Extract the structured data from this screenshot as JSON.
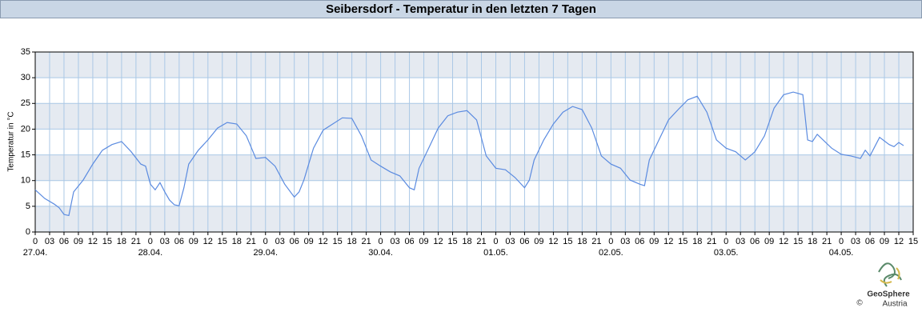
{
  "chart_data": {
    "type": "line",
    "title": "Seibersdorf - Temperatur in den letzten 7 Tagen",
    "ylabel": "Temperatur in °C",
    "ylim": [
      0,
      35
    ],
    "yticks": [
      0,
      5,
      10,
      15,
      20,
      25,
      30,
      35
    ],
    "xlim": [
      0,
      183
    ],
    "xticks": [
      0,
      {
        "value": 3,
        "label": "03"
      },
      {
        "value": 6,
        "label": "06"
      },
      {
        "value": 9,
        "label": "09"
      },
      12,
      15,
      18,
      21,
      {
        "value": 24,
        "label": "0"
      },
      {
        "value": 27,
        "label": "03"
      },
      {
        "value": 30,
        "label": "06"
      },
      {
        "value": 33,
        "label": "09"
      },
      {
        "value": 36,
        "label": "12"
      },
      {
        "value": 39,
        "label": "15"
      },
      {
        "value": 42,
        "label": "18"
      },
      {
        "value": 45,
        "label": "21"
      },
      {
        "value": 48,
        "label": "0"
      },
      {
        "value": 51,
        "label": "03"
      },
      {
        "value": 54,
        "label": "06"
      },
      {
        "value": 57,
        "label": "09"
      },
      {
        "value": 60,
        "label": "12"
      },
      {
        "value": 63,
        "label": "15"
      },
      {
        "value": 66,
        "label": "18"
      },
      {
        "value": 69,
        "label": "21"
      },
      {
        "value": 72,
        "label": "0"
      },
      {
        "value": 75,
        "label": "03"
      },
      {
        "value": 78,
        "label": "06"
      },
      {
        "value": 81,
        "label": "09"
      },
      {
        "value": 84,
        "label": "12"
      },
      {
        "value": 87,
        "label": "15"
      },
      {
        "value": 90,
        "label": "18"
      },
      {
        "value": 93,
        "label": "21"
      },
      {
        "value": 96,
        "label": "0"
      },
      {
        "value": 99,
        "label": "03"
      },
      {
        "value": 102,
        "label": "06"
      },
      {
        "value": 105,
        "label": "09"
      },
      {
        "value": 108,
        "label": "12"
      },
      {
        "value": 111,
        "label": "15"
      },
      {
        "value": 114,
        "label": "18"
      },
      {
        "value": 117,
        "label": "21"
      },
      {
        "value": 120,
        "label": "0"
      },
      {
        "value": 123,
        "label": "03"
      },
      {
        "value": 126,
        "label": "06"
      },
      {
        "value": 129,
        "label": "09"
      },
      {
        "value": 132,
        "label": "12"
      },
      {
        "value": 135,
        "label": "15"
      },
      {
        "value": 138,
        "label": "18"
      },
      {
        "value": 141,
        "label": "21"
      },
      {
        "value": 144,
        "label": "0"
      },
      {
        "value": 147,
        "label": "03"
      },
      {
        "value": 150,
        "label": "06"
      },
      {
        "value": 153,
        "label": "09"
      },
      {
        "value": 156,
        "label": "12"
      },
      {
        "value": 159,
        "label": "15"
      },
      {
        "value": 162,
        "label": "18"
      },
      {
        "value": 165,
        "label": "21"
      },
      {
        "value": 168,
        "label": "0"
      },
      {
        "value": 171,
        "label": "03"
      },
      {
        "value": 174,
        "label": "06"
      },
      {
        "value": 177,
        "label": "09"
      },
      {
        "value": 180,
        "label": "12"
      },
      {
        "value": 183,
        "label": "15"
      }
    ],
    "date_ticks": [
      {
        "value": 0,
        "label": "27.04."
      },
      {
        "value": 24,
        "label": "28.04."
      },
      {
        "value": 48,
        "label": "29.04."
      },
      {
        "value": 72,
        "label": "30.04."
      },
      {
        "value": 96,
        "label": "01.05."
      },
      {
        "value": 120,
        "label": "02.05."
      },
      {
        "value": 144,
        "label": "03.05."
      },
      {
        "value": 168,
        "label": "04.05."
      }
    ],
    "grid": true,
    "bands": true,
    "x": [
      0,
      2,
      4,
      5,
      6,
      7,
      8,
      10,
      12,
      14,
      16,
      18,
      20,
      22,
      23,
      24,
      25,
      26,
      27,
      28,
      29,
      30,
      31,
      32,
      34,
      36,
      38,
      40,
      42,
      44,
      46,
      48,
      50,
      52,
      54,
      55,
      56,
      57,
      58,
      60,
      62,
      64,
      66,
      68,
      70,
      72,
      74,
      76,
      78,
      79,
      80,
      82,
      84,
      86,
      88,
      90,
      92,
      94,
      96,
      98,
      100,
      102,
      103,
      104,
      106,
      108,
      110,
      112,
      114,
      116,
      118,
      120,
      122,
      124,
      126,
      127,
      128,
      130,
      132,
      134,
      136,
      138,
      140,
      142,
      144,
      146,
      148,
      149,
      150,
      152,
      154,
      156,
      158,
      160,
      161,
      162,
      163,
      166,
      168,
      170,
      172,
      173,
      174,
      176,
      178,
      179,
      180,
      181
    ],
    "series": [
      {
        "color": "#5b8be0",
        "values": [
          8.2,
          6.5,
          5.4,
          4.7,
          3.4,
          3.2,
          7.8,
          10.1,
          13.2,
          15.9,
          17,
          17.6,
          15.6,
          13.2,
          12.8,
          9.3,
          8.2,
          9.6,
          7.8,
          6.2,
          5.3,
          5.1,
          8.6,
          13.2,
          15.9,
          17.9,
          20.2,
          21.3,
          21,
          18.7,
          14.3,
          14.5,
          12.8,
          9.3,
          6.8,
          7.8,
          10.1,
          13.2,
          16.3,
          19.8,
          21,
          22.2,
          22.1,
          18.7,
          14,
          12.8,
          11.7,
          10.9,
          8.6,
          8.2,
          12.4,
          16.3,
          20.2,
          22.6,
          23.3,
          23.6,
          21.8,
          14.8,
          12.4,
          12.1,
          10.6,
          8.6,
          10.1,
          14,
          17.9,
          21,
          23.3,
          24.4,
          23.8,
          20.2,
          14.8,
          13.2,
          12.4,
          10.1,
          9.3,
          9,
          14,
          17.9,
          21.8,
          23.8,
          25.7,
          26.4,
          23.3,
          17.9,
          16.3,
          15.6,
          14,
          14.8,
          15.6,
          18.7,
          24.1,
          26.7,
          27.2,
          26.7,
          17.9,
          17.6,
          19,
          16.3,
          15.1,
          14.8,
          14.3,
          15.9,
          14.8,
          18.4,
          17,
          16.6,
          17.4,
          16.8
        ]
      }
    ]
  },
  "logo": {
    "name": "GeoSphere",
    "sub": "Austria",
    "copyright": "©"
  }
}
